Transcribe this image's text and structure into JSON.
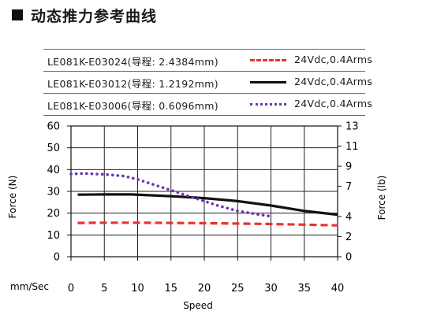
{
  "page_title": "动态推力参考曲线",
  "legend": [
    {
      "label": "LE081K-E03024(导程: 2.4384mm)",
      "value": "24Vdc,0.4Arms",
      "color": "#e8332c",
      "style": "dashed"
    },
    {
      "label": "LE081K-E03012(导程: 1.2192mm)",
      "value": "24Vdc,0.4Arms",
      "color": "#111111",
      "style": "solid"
    },
    {
      "label": "LE081K-E03006(导程: 0.6096mm)",
      "value": "24Vdc,0.4Arms",
      "color": "#6a35b5",
      "style": "dotted"
    }
  ],
  "chart_data": {
    "type": "line",
    "xlabel": "Speed",
    "x_unit": "mm/Sec",
    "ylabel": "Force (N)",
    "y2label": "Force (lb)",
    "xlim": [
      0,
      40
    ],
    "ylim": [
      0,
      60
    ],
    "y2lim": [
      0,
      13
    ],
    "x_ticks": [
      0,
      5,
      10,
      15,
      20,
      25,
      30,
      35,
      40
    ],
    "y_ticks": [
      0,
      10,
      20,
      30,
      40,
      50,
      60
    ],
    "y2_ticks": [
      0,
      2,
      4,
      7,
      9,
      11,
      13
    ],
    "grid": true,
    "series": [
      {
        "name": "LE081K-E03024(导程: 2.4384mm)",
        "color": "#e8332c",
        "style": "dashed",
        "x": [
          1,
          5,
          10,
          15,
          20,
          25,
          30,
          35,
          40
        ],
        "y": [
          15.5,
          15.6,
          15.6,
          15.5,
          15.4,
          15.2,
          15.0,
          14.7,
          14.4
        ]
      },
      {
        "name": "LE081K-E03012(导程: 1.2192mm)",
        "color": "#111111",
        "style": "solid",
        "x": [
          1,
          5,
          9,
          15,
          20,
          25,
          30,
          35,
          40
        ],
        "y": [
          28.5,
          28.6,
          28.6,
          27.8,
          26.9,
          25.5,
          23.5,
          21.0,
          19.3
        ]
      },
      {
        "name": "LE081K-E03006(导程: 0.6096mm)",
        "color": "#6a35b5",
        "style": "dotted",
        "x": [
          0,
          2,
          5,
          8,
          10,
          12,
          15,
          18,
          20,
          22,
          25,
          28,
          30
        ],
        "y": [
          38.0,
          38.2,
          37.8,
          37.0,
          35.5,
          33.5,
          30.5,
          27.5,
          25.5,
          23.5,
          21.0,
          19.5,
          18.5
        ]
      }
    ]
  }
}
